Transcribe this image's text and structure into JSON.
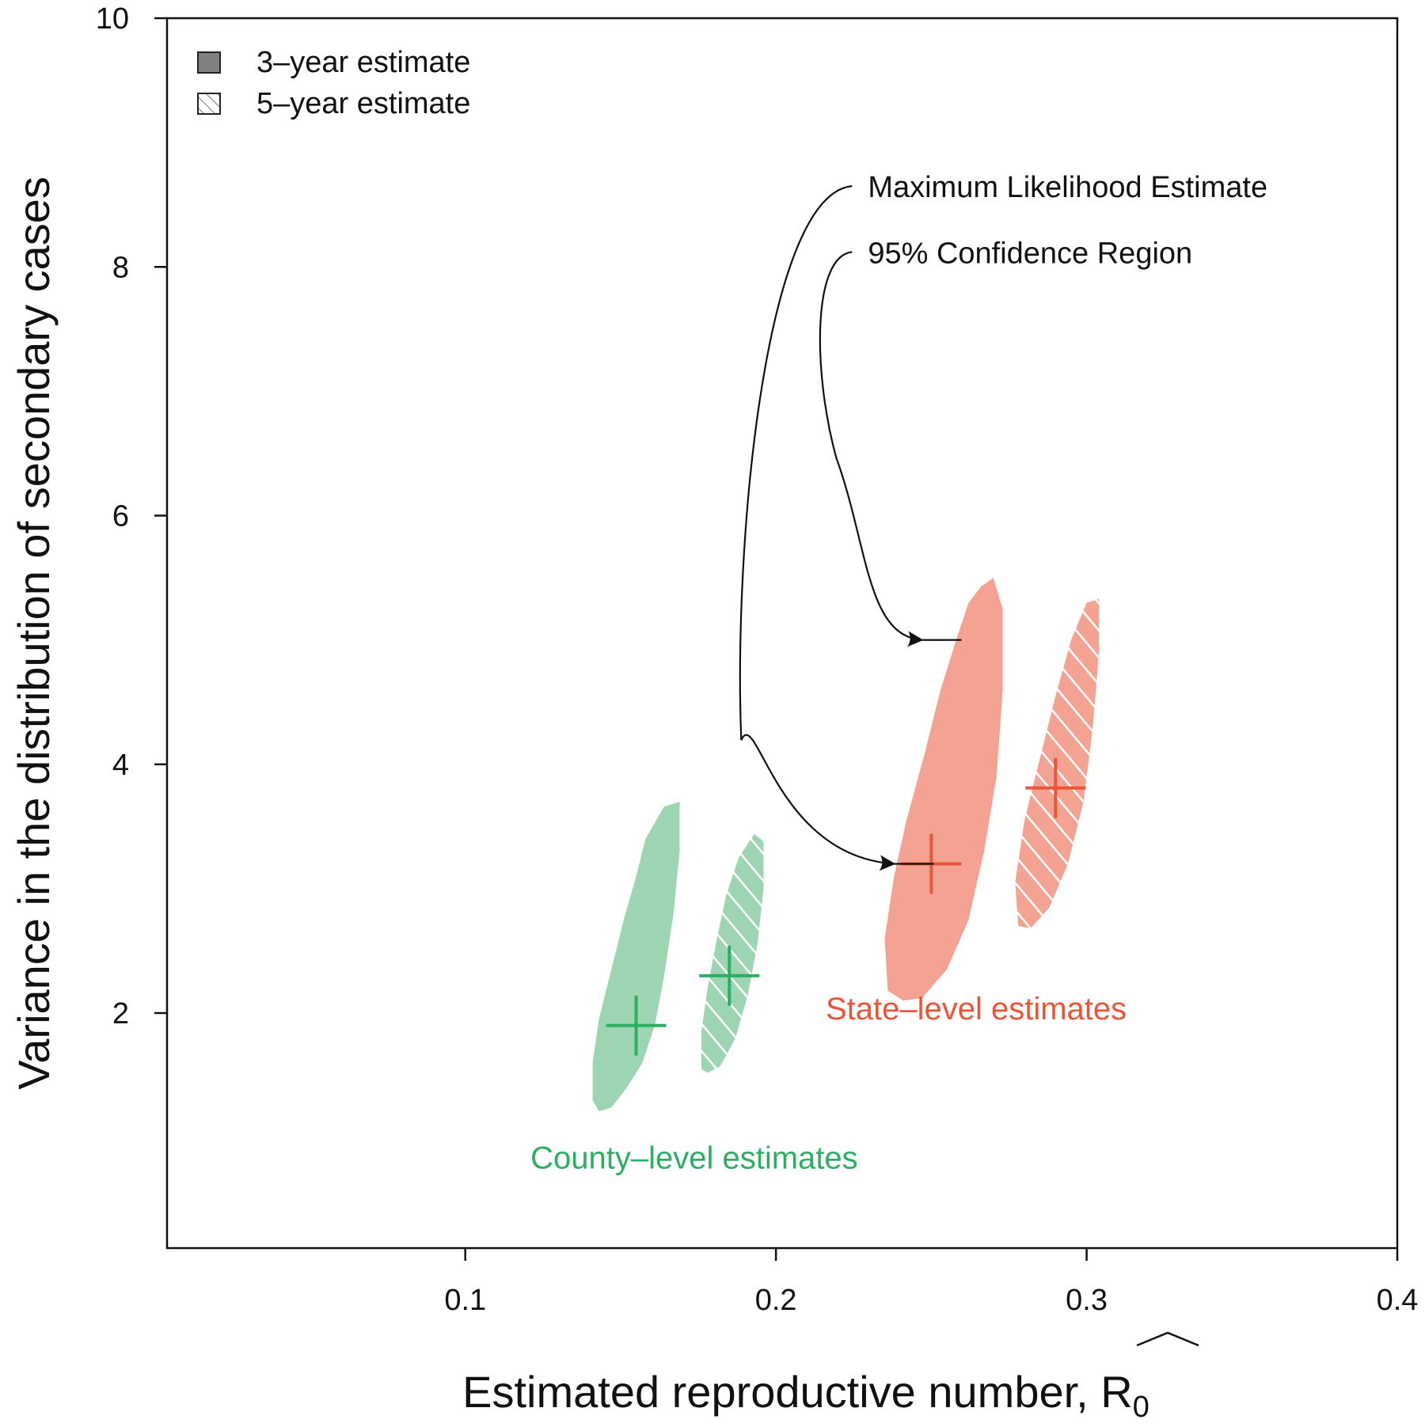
{
  "chart_data": {
    "type": "scatter",
    "title": "",
    "xlabel": "Estimated reproductive number, R̂₀",
    "xlabel_main": "Estimated reproductive number, ",
    "xlabel_symbol": "R",
    "xlabel_subscript": "0",
    "ylabel": "Variance in the distribution of secondary cases",
    "xlim": [
      0.004,
      0.4
    ],
    "ylim": [
      0.11,
      10
    ],
    "xticks": [
      0.1,
      0.2,
      0.3,
      0.4
    ],
    "xtick_labels": [
      "0.1",
      "0.2",
      "0.3",
      "0.4"
    ],
    "yticks": [
      2,
      4,
      6,
      8,
      10
    ],
    "ytick_labels": [
      "2",
      "4",
      "6",
      "8",
      "10"
    ],
    "grid": false,
    "legend": {
      "placement": "top-left",
      "entries": [
        {
          "label": "3–year estimate",
          "style": "solid"
        },
        {
          "label": "5–year estimate",
          "style": "hatched"
        }
      ]
    },
    "colors": {
      "county_fill": "#9dd4b1",
      "county_mark": "#2eae62",
      "state_fill": "#f4a292",
      "state_mark": "#ea5538",
      "legend_solid": "#808080"
    },
    "group_labels": [
      {
        "text": "County–level estimates",
        "group": "county",
        "x": 0.121,
        "y": 0.75
      },
      {
        "text": "State–level estimates",
        "group": "state",
        "x": 0.216,
        "y": 1.95
      }
    ],
    "annotations": [
      {
        "text": "Maximum Likelihood Estimate",
        "x": 0.224,
        "y": 8.65,
        "points_to": {
          "x": 0.238,
          "y": 3.2
        }
      },
      {
        "text": "95% Confidence Region",
        "x": 0.224,
        "y": 8.12,
        "points_to": {
          "x": 0.247,
          "y": 5.0
        }
      }
    ],
    "series": [
      {
        "name": "County-level 3-year estimate",
        "group": "county",
        "style": "solid",
        "mle": {
          "x": 0.155,
          "y": 1.9
        },
        "confidence_region": [
          [
            0.164,
            3.66
          ],
          [
            0.169,
            3.7
          ],
          [
            0.169,
            3.3
          ],
          [
            0.167,
            2.8
          ],
          [
            0.164,
            2.3
          ],
          [
            0.161,
            1.9
          ],
          [
            0.157,
            1.6
          ],
          [
            0.152,
            1.4
          ],
          [
            0.147,
            1.24
          ],
          [
            0.143,
            1.21
          ],
          [
            0.141,
            1.3
          ],
          [
            0.141,
            1.6
          ],
          [
            0.143,
            1.95
          ],
          [
            0.147,
            2.35
          ],
          [
            0.151,
            2.75
          ],
          [
            0.155,
            3.1
          ],
          [
            0.158,
            3.4
          ]
        ]
      },
      {
        "name": "County-level 5-year estimate",
        "group": "county",
        "style": "hatched",
        "mle": {
          "x": 0.185,
          "y": 2.3
        },
        "confidence_region": [
          [
            0.193,
            3.44
          ],
          [
            0.196,
            3.38
          ],
          [
            0.196,
            3.0
          ],
          [
            0.194,
            2.55
          ],
          [
            0.191,
            2.15
          ],
          [
            0.187,
            1.8
          ],
          [
            0.182,
            1.57
          ],
          [
            0.178,
            1.52
          ],
          [
            0.176,
            1.55
          ],
          [
            0.176,
            1.85
          ],
          [
            0.178,
            2.2
          ],
          [
            0.181,
            2.6
          ],
          [
            0.184,
            2.95
          ],
          [
            0.188,
            3.25
          ]
        ]
      },
      {
        "name": "State-level 3-year estimate",
        "group": "state",
        "style": "solid",
        "mle": {
          "x": 0.25,
          "y": 3.2
        },
        "confidence_region": [
          [
            0.266,
            5.43
          ],
          [
            0.27,
            5.5
          ],
          [
            0.273,
            5.25
          ],
          [
            0.273,
            4.6
          ],
          [
            0.271,
            3.9
          ],
          [
            0.267,
            3.3
          ],
          [
            0.262,
            2.75
          ],
          [
            0.255,
            2.35
          ],
          [
            0.247,
            2.12
          ],
          [
            0.241,
            2.1
          ],
          [
            0.236,
            2.18
          ],
          [
            0.235,
            2.6
          ],
          [
            0.238,
            3.1
          ],
          [
            0.242,
            3.55
          ],
          [
            0.248,
            4.1
          ],
          [
            0.253,
            4.6
          ],
          [
            0.258,
            5.0
          ],
          [
            0.262,
            5.3
          ]
        ]
      },
      {
        "name": "State-level 5-year estimate",
        "group": "state",
        "style": "hatched",
        "mle": {
          "x": 0.29,
          "y": 3.81
        },
        "confidence_region": [
          [
            0.3,
            5.3
          ],
          [
            0.304,
            5.33
          ],
          [
            0.304,
            4.9
          ],
          [
            0.302,
            4.3
          ],
          [
            0.299,
            3.7
          ],
          [
            0.294,
            3.2
          ],
          [
            0.288,
            2.85
          ],
          [
            0.282,
            2.68
          ],
          [
            0.278,
            2.7
          ],
          [
            0.277,
            3.05
          ],
          [
            0.28,
            3.55
          ],
          [
            0.285,
            4.05
          ],
          [
            0.29,
            4.55
          ],
          [
            0.295,
            5.0
          ]
        ]
      }
    ]
  }
}
